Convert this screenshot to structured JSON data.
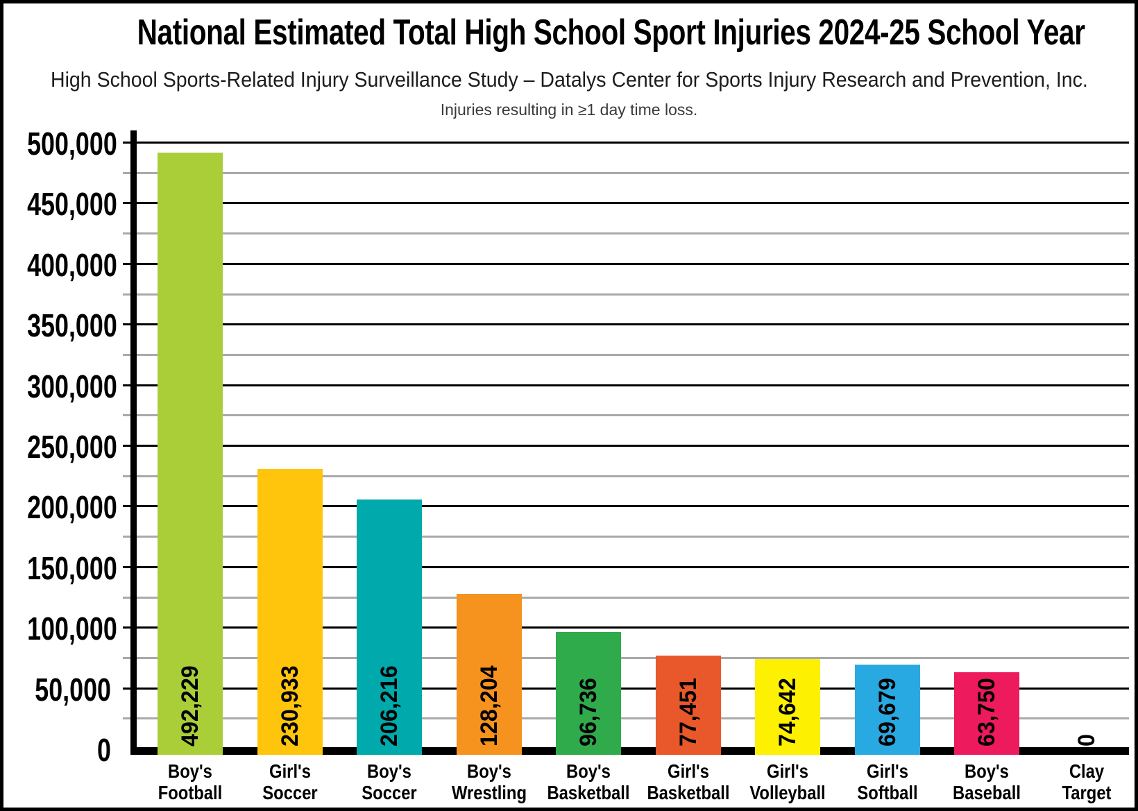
{
  "title": "National Estimated Total High School Sport Injuries 2024-25 School Year",
  "subtitle": "High School Sports-Related Injury Surveillance Study – Datalys Center for Sports Injury Research and Prevention, Inc.",
  "note": "Injuries resulting in ≥1 day time loss.",
  "chart_data": {
    "type": "bar",
    "categories": [
      [
        "Boy's",
        "Football"
      ],
      [
        "Girl's",
        "Soccer"
      ],
      [
        "Boy's",
        "Soccer"
      ],
      [
        "Boy's",
        "Wrestling"
      ],
      [
        "Boy's",
        "Basketball"
      ],
      [
        "Girl's",
        "Basketball"
      ],
      [
        "Girl's",
        "Volleyball"
      ],
      [
        "Girl's",
        "Softball"
      ],
      [
        "Boy's",
        "Baseball"
      ],
      [
        "Clay",
        "Target"
      ]
    ],
    "values": [
      492229,
      230933,
      206216,
      128204,
      96736,
      77451,
      74642,
      69679,
      63750,
      0
    ],
    "value_labels": [
      "492,229",
      "230,933",
      "206,216",
      "128,204",
      "96,736",
      "77,451",
      "74,642",
      "69,679",
      "63,750",
      "0"
    ],
    "bar_colors": [
      "#a9ce38",
      "#fec50c",
      "#00a9ab",
      "#f6921e",
      "#2fab4b",
      "#e8582a",
      "#fdf000",
      "#29a9e1",
      "#ed1a5e",
      null
    ],
    "title": "National Estimated Total High School Sport Injuries 2024-25 School Year",
    "xlabel": "",
    "ylabel": "",
    "ylim": [
      0,
      500000
    ],
    "ytick_step": 50000,
    "minor_gridline_step": 25000,
    "ytick_labels": [
      "0",
      "50,000",
      "100,000",
      "150,000",
      "200,000",
      "250,000",
      "300,000",
      "350,000",
      "400,000",
      "450,000",
      "500,000"
    ],
    "grid": "horizontal, major black + minor gray",
    "legend": "none",
    "gridline_major_color": "#000000",
    "gridline_minor_color": "#a9a9a9",
    "axis_color": "#000000"
  }
}
